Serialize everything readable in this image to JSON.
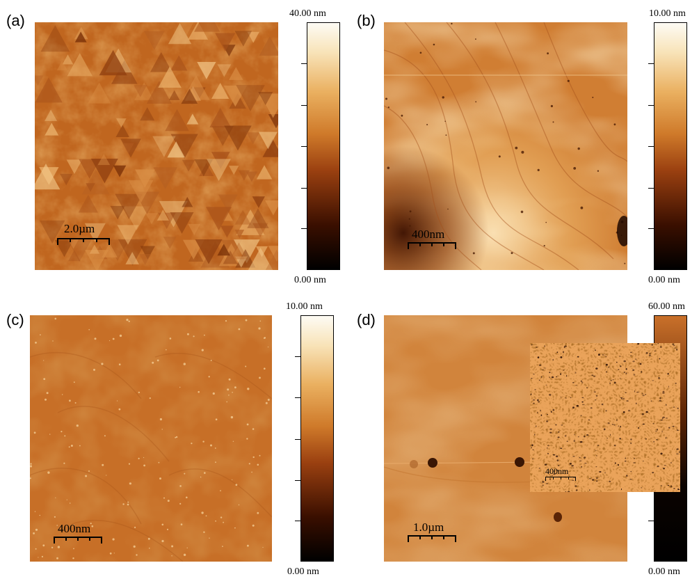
{
  "panels": [
    {
      "label": "(a)",
      "colorbar_max": "40.00 nm",
      "colorbar_min": "0.00 nm",
      "scalebar": "2.0µm",
      "surface": "triangular-terraced-islands"
    },
    {
      "label": "(b)",
      "colorbar_max": "10.00 nm",
      "colorbar_min": "0.00 nm",
      "scalebar": "400nm",
      "surface": "terraced-steps-with-pits"
    },
    {
      "label": "(c)",
      "colorbar_max": "10.00 nm",
      "colorbar_min": "0.00 nm",
      "scalebar": "400nm",
      "surface": "smooth-with-small-bright-dots"
    },
    {
      "label": "(d)",
      "colorbar_max": "60.00 nm",
      "colorbar_min": "0.00 nm",
      "scalebar": "1.0µm",
      "surface": "smooth-with-crack-line",
      "inset": {
        "scalebar": "400nm",
        "surface": "porous-mottled"
      }
    }
  ],
  "colors": {
    "afm_dark": "#2a0e00",
    "afm_mid": "#c86a1e",
    "afm_light": "#f4c98a",
    "afm_white": "#fdfaf2"
  }
}
